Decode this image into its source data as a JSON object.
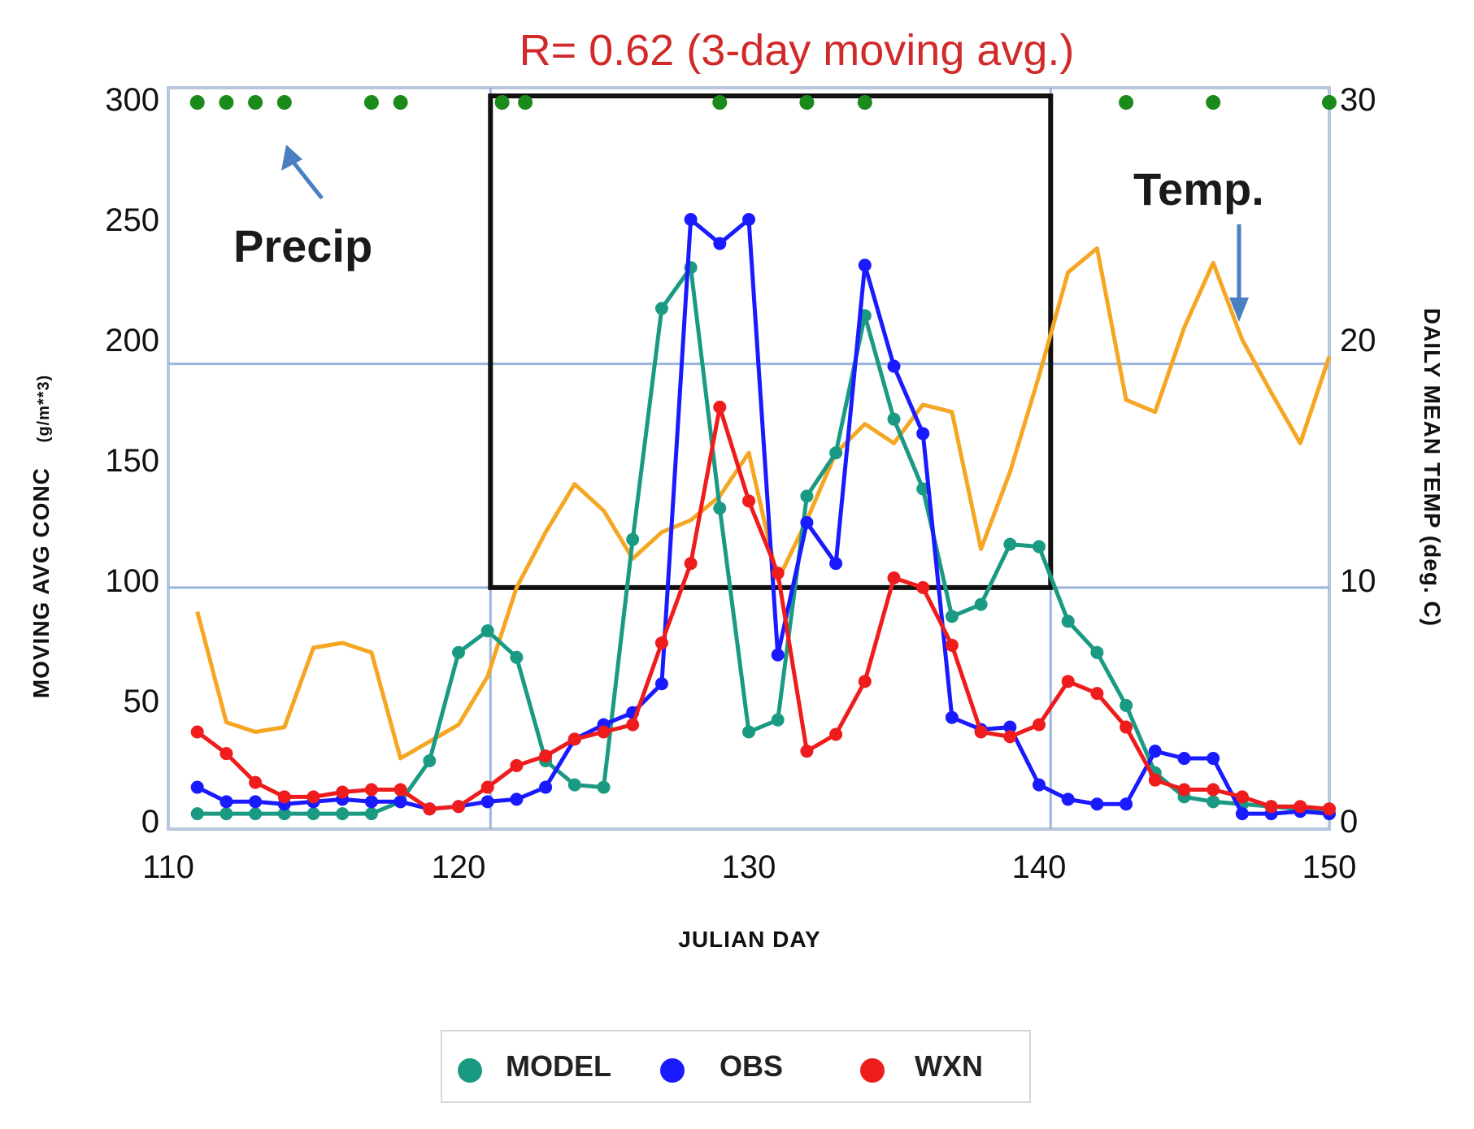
{
  "chart_data": {
    "type": "line",
    "title": "R=  0.62 (3-day moving avg.)",
    "xlabel": "JULIAN DAY",
    "ylabel": "MOVING AVG CONC",
    "ylabel_units": "(g/m**3)",
    "y2label": "DAILY MEAN TEMP (deg. C)",
    "xlim": [
      110,
      150
    ],
    "ylim": [
      0,
      300
    ],
    "y2lim": [
      0,
      30
    ],
    "xticks": [
      "110",
      "120",
      "130",
      "140",
      "150"
    ],
    "yticks": [
      "0",
      "50",
      "100",
      "150",
      "200",
      "250",
      "300"
    ],
    "y2ticks": [
      "0",
      "10",
      "20",
      "30"
    ],
    "annotations": {
      "precip": "Precip",
      "temp": "Temp."
    },
    "highlight_box": {
      "x0": 121.1,
      "x1": 140.4,
      "y0": 97,
      "y1": 300
    },
    "reference_lines": [
      {
        "orientation": "horizontal",
        "y": 97
      },
      {
        "orientation": "horizontal",
        "y": 190
      },
      {
        "orientation": "vertical",
        "x": 121.1
      },
      {
        "orientation": "vertical",
        "x": 140.4
      }
    ],
    "series": [
      {
        "name": "MODEL",
        "color": "#1a9a82",
        "markers": true,
        "x": [
          111,
          112,
          113,
          114,
          115,
          116,
          117,
          118,
          119,
          120,
          121,
          122,
          123,
          124,
          125,
          126,
          127,
          128,
          129,
          130,
          131,
          132,
          133,
          134,
          135,
          136,
          137,
          138,
          139,
          140,
          141,
          142,
          143,
          144,
          145,
          146,
          147,
          148,
          149,
          150
        ],
        "y": [
          3,
          3,
          3,
          3,
          3,
          3,
          3,
          8,
          25,
          70,
          79,
          68,
          25,
          15,
          14,
          117,
          213,
          230,
          130,
          37,
          42,
          135,
          153,
          210,
          167,
          138,
          85,
          90,
          115,
          114,
          83,
          70,
          48,
          20,
          10,
          8,
          7,
          6,
          5,
          5
        ]
      },
      {
        "name": "OBS",
        "color": "#1a1aff",
        "markers": true,
        "x": [
          111,
          112,
          113,
          114,
          115,
          116,
          117,
          118,
          119,
          120,
          121,
          122,
          123,
          124,
          125,
          126,
          127,
          128,
          129,
          130,
          131,
          132,
          133,
          134,
          135,
          136,
          137,
          138,
          139,
          140,
          141,
          142,
          143,
          144,
          145,
          146,
          147,
          148,
          149,
          150
        ],
        "y": [
          14,
          8,
          8,
          7,
          8,
          9,
          8,
          8,
          5,
          6,
          8,
          9,
          14,
          34,
          40,
          45,
          57,
          250,
          240,
          250,
          69,
          124,
          107,
          231,
          189,
          161,
          43,
          38,
          39,
          15,
          9,
          7,
          7,
          29,
          26,
          26,
          3,
          3,
          4,
          3
        ]
      },
      {
        "name": "WXN",
        "color": "#ee1c1c",
        "markers": true,
        "x": [
          111,
          112,
          113,
          114,
          115,
          116,
          117,
          118,
          119,
          120,
          121,
          122,
          123,
          124,
          125,
          126,
          127,
          128,
          129,
          130,
          131,
          132,
          133,
          134,
          135,
          136,
          137,
          138,
          139,
          140,
          141,
          142,
          143,
          144,
          145,
          146,
          147,
          148,
          149,
          150
        ],
        "y": [
          37,
          28,
          16,
          10,
          10,
          12,
          13,
          13,
          5,
          6,
          14,
          23,
          27,
          34,
          37,
          40,
          74,
          107,
          172,
          133,
          103,
          29,
          36,
          58,
          101,
          97,
          73,
          37,
          35,
          40,
          58,
          53,
          39,
          17,
          13,
          13,
          10,
          6,
          6,
          5
        ]
      },
      {
        "name": "Temp",
        "color": "#f5a623",
        "markers": false,
        "axis": "right",
        "x": [
          111,
          112,
          113,
          114,
          115,
          116,
          117,
          118,
          119,
          120,
          121,
          122,
          123,
          124,
          125,
          126,
          127,
          128,
          129,
          130,
          131,
          132,
          133,
          134,
          135,
          136,
          137,
          138,
          139,
          140,
          141,
          142,
          143,
          144,
          145,
          146,
          147,
          148,
          149,
          150
        ],
        "y": [
          8.7,
          4.1,
          3.7,
          3.9,
          7.2,
          7.4,
          7.0,
          2.6,
          3.3,
          4.0,
          6.0,
          9.7,
          12.0,
          14.0,
          12.9,
          10.9,
          12.0,
          12.5,
          13.5,
          15.3,
          10.0,
          12.5,
          15.3,
          16.5,
          15.7,
          17.3,
          17.0,
          11.3,
          14.5,
          18.5,
          22.8,
          23.8,
          17.5,
          17.0,
          20.5,
          23.2,
          20.0,
          17.8,
          15.7,
          19.3
        ]
      }
    ],
    "precip_days": [
      111,
      112,
      113,
      114,
      117,
      118,
      121.5,
      122.3,
      129,
      132,
      134,
      143,
      146,
      150
    ]
  },
  "legend": {
    "items": [
      {
        "label": "MODEL",
        "color": "#1a9a82"
      },
      {
        "label": "OBS",
        "color": "#1a1aff"
      },
      {
        "label": "WXN",
        "color": "#ee1c1c"
      }
    ]
  },
  "colors": {
    "precip": "#1a8a1a",
    "arrow": "#4a7fc1",
    "ref_line": "#9bb5dd",
    "box": "#111111"
  }
}
